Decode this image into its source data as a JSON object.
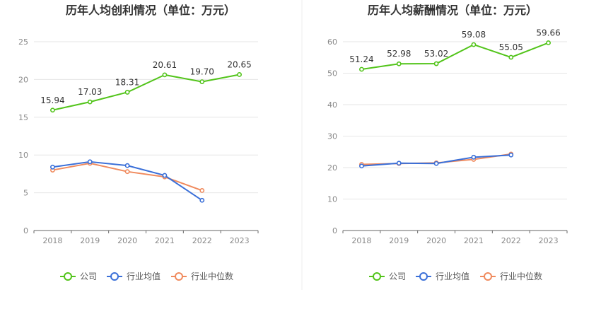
{
  "colors": {
    "company": "#52c41a",
    "industry_avg": "#3a6fd8",
    "industry_median": "#f08a5d"
  },
  "legend": {
    "company": "公司",
    "industry_avg": "行业均值",
    "industry_median": "行业中位数"
  },
  "chart_data": [
    {
      "type": "line",
      "title": "历年人均创利情况（单位：万元）",
      "categories": [
        "2018",
        "2019",
        "2020",
        "2021",
        "2022",
        "2023"
      ],
      "ylim": [
        0,
        25
      ],
      "yticks": [
        0,
        5,
        10,
        15,
        20,
        25
      ],
      "grid": true,
      "legend_position": "bottom",
      "series": [
        {
          "name": "公司",
          "key": "company",
          "values": [
            15.94,
            17.03,
            18.31,
            20.61,
            19.7,
            20.65
          ],
          "labels": [
            "15.94",
            "17.03",
            "18.31",
            "20.61",
            "19.70",
            "20.65"
          ]
        },
        {
          "name": "行业均值",
          "key": "industry_avg",
          "values": [
            8.4,
            9.1,
            8.6,
            7.3,
            4.0,
            null
          ]
        },
        {
          "name": "行业中位数",
          "key": "industry_median",
          "values": [
            8.0,
            8.9,
            7.8,
            7.1,
            5.3,
            null
          ]
        }
      ]
    },
    {
      "type": "line",
      "title": "历年人均薪酬情况（单位：万元）",
      "categories": [
        "2018",
        "2019",
        "2020",
        "2021",
        "2022",
        "2023"
      ],
      "ylim": [
        0,
        60
      ],
      "yticks": [
        0,
        10,
        20,
        30,
        40,
        50,
        60
      ],
      "grid": true,
      "legend_position": "bottom",
      "series": [
        {
          "name": "公司",
          "key": "company",
          "values": [
            51.24,
            52.98,
            53.02,
            59.08,
            55.05,
            59.66
          ],
          "labels": [
            "51.24",
            "52.98",
            "53.02",
            "59.08",
            "55.05",
            "59.66"
          ]
        },
        {
          "name": "行业均值",
          "key": "industry_avg",
          "values": [
            20.5,
            21.4,
            21.3,
            23.3,
            24.0,
            null
          ]
        },
        {
          "name": "行业中位数",
          "key": "industry_median",
          "values": [
            21.0,
            21.3,
            21.5,
            22.6,
            24.3,
            null
          ]
        }
      ]
    }
  ]
}
